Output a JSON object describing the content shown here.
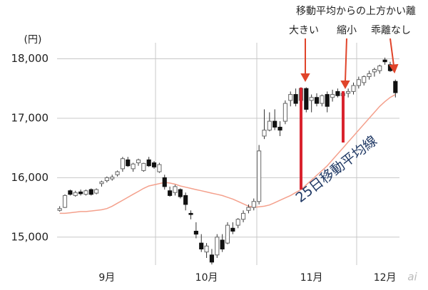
{
  "chart_data": {
    "type": "candlestick",
    "y_unit": "(円)",
    "categories": [
      null,
      null,
      null,
      null,
      null,
      null,
      null,
      null,
      null,
      "9月",
      null,
      null,
      null,
      null,
      null,
      null,
      null,
      null,
      null,
      null,
      null,
      null,
      null,
      null,
      null,
      null,
      null,
      null,
      "10月",
      null,
      null,
      null,
      null,
      null,
      null,
      null,
      null,
      null,
      null,
      null,
      null,
      null,
      null,
      null,
      null,
      null,
      null,
      null,
      "11月",
      null,
      null,
      null,
      null,
      null,
      null,
      null,
      null,
      null,
      null,
      null,
      null,
      null,
      "12月",
      null,
      null
    ],
    "open": [
      15450,
      15500,
      15780,
      15700,
      15760,
      15720,
      15800,
      15740,
      15900,
      15950,
      15980,
      16050,
      16150,
      16300,
      16150,
      16250,
      16120,
      16300,
      16250,
      16100,
      16000,
      15780,
      15750,
      15800,
      15700,
      15400,
      15100,
      14900,
      14750,
      14700,
      14700,
      14950,
      14900,
      15150,
      15200,
      15300,
      15450,
      15500,
      15600,
      16700,
      16800,
      16950,
      16850,
      16950,
      17300,
      17400,
      17300,
      17500,
      17300,
      17350,
      17250,
      17400,
      17350,
      17450,
      17380,
      17420,
      17450,
      17550,
      17600,
      17700,
      17780,
      17800,
      17980,
      17900,
      17620
    ],
    "high": [
      15520,
      15720,
      15800,
      15780,
      15800,
      15800,
      15820,
      15820,
      15950,
      16020,
      16050,
      16120,
      16350,
      16350,
      16250,
      16320,
      16250,
      16350,
      16280,
      16250,
      16050,
      15850,
      15880,
      15820,
      15750,
      15450,
      15250,
      15050,
      14900,
      14800,
      15050,
      15050,
      15250,
      15250,
      15320,
      15450,
      15550,
      15650,
      16550,
      17150,
      17100,
      17150,
      16950,
      17300,
      17450,
      17500,
      17520,
      17520,
      17400,
      17420,
      17400,
      17450,
      17480,
      17500,
      17450,
      17500,
      17600,
      17700,
      17720,
      17800,
      17850,
      17900,
      18020,
      17950,
      17650
    ],
    "low": [
      15430,
      15490,
      15700,
      15680,
      15700,
      15700,
      15700,
      15720,
      15850,
      15920,
      15950,
      16020,
      16100,
      16180,
      16100,
      16200,
      16100,
      16180,
      16150,
      16080,
      15800,
      15680,
      15700,
      15650,
      15450,
      15300,
      14980,
      14750,
      14650,
      14540,
      14650,
      14750,
      14880,
      15050,
      15150,
      15250,
      15400,
      15450,
      15550,
      16650,
      16780,
      16800,
      16700,
      16900,
      17200,
      17200,
      17200,
      17100,
      17100,
      17200,
      17200,
      17100,
      17280,
      17350,
      17300,
      17350,
      17400,
      17500,
      17550,
      17650,
      17700,
      17750,
      17900,
      17780,
      17350
    ],
    "close": [
      15480,
      15700,
      15720,
      15750,
      15730,
      15780,
      15720,
      15800,
      15930,
      16000,
      16010,
      16100,
      16320,
      16200,
      16230,
      16300,
      16240,
      16200,
      16180,
      16220,
      15850,
      15700,
      15850,
      15680,
      15550,
      15380,
      15050,
      14800,
      14850,
      14580,
      15000,
      14800,
      15200,
      15100,
      15300,
      15400,
      15500,
      15600,
      16450,
      16800,
      16950,
      16850,
      16800,
      17250,
      17400,
      17250,
      17500,
      17150,
      17350,
      17250,
      17380,
      17200,
      17400,
      17380,
      17420,
      17450,
      17550,
      17650,
      17700,
      17750,
      17820,
      17880,
      17950,
      17800,
      17430
    ],
    "ma_values": [
      15400,
      15400,
      15410,
      15420,
      15430,
      15430,
      15440,
      15450,
      15460,
      15480,
      15520,
      15570,
      15620,
      15670,
      15720,
      15770,
      15820,
      15860,
      15880,
      15900,
      15920,
      15910,
      15890,
      15860,
      15840,
      15820,
      15800,
      15780,
      15760,
      15740,
      15720,
      15700,
      15670,
      15640,
      15600,
      15560,
      15520,
      15500,
      15510,
      15520,
      15540,
      15580,
      15620,
      15660,
      15700,
      15750,
      15800,
      15880,
      15960,
      16040,
      16120,
      16200,
      16300,
      16400,
      16500,
      16600,
      16700,
      16800,
      16900,
      17000,
      17100,
      17200,
      17280,
      17350,
      17400
    ],
    "ma_color": "#f4a08c",
    "ma_label": "25日移動平均線",
    "annotation_title": "移動平均からの上方かい離",
    "annotations": [
      "大きい",
      "縮小",
      "乖離なし"
    ],
    "ylim": [
      14530,
      18270
    ],
    "yticks": [
      {
        "value": 15000,
        "label": "15,000"
      },
      {
        "value": 16000,
        "label": "16,000"
      },
      {
        "value": 17000,
        "label": "17,000"
      },
      {
        "value": 18000,
        "label": "18,000"
      }
    ],
    "grid": true
  }
}
